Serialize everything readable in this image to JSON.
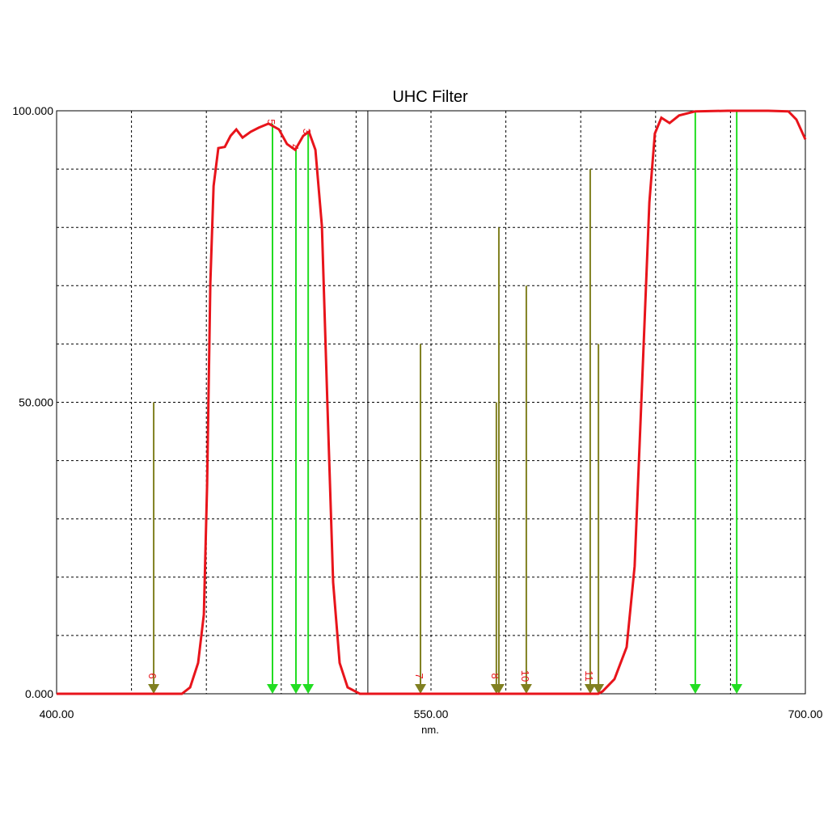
{
  "chart_data": {
    "type": "line",
    "title": "UHC Filter",
    "x_label": "nm.",
    "xlim": [
      400,
      700
    ],
    "ylim": [
      0,
      100
    ],
    "xticks": [
      {
        "value": 400,
        "label": "400.00"
      },
      {
        "value": 550,
        "label": "550.00"
      },
      {
        "value": 700,
        "label": "700.00"
      }
    ],
    "yticks": [
      {
        "value": 0,
        "label": "0.000"
      },
      {
        "value": 50,
        "label": "50.000"
      },
      {
        "value": 100,
        "label": "100.000"
      }
    ],
    "xgrid": [
      430,
      460,
      490,
      520,
      550,
      580,
      610,
      640,
      670
    ],
    "ygrid": [
      10,
      20,
      30,
      40,
      50,
      60,
      70,
      80,
      90
    ],
    "grid": true,
    "cursor_x": 524.7,
    "series": [
      {
        "color": "#e8141b",
        "x": [
          400,
          450.2,
          453.5,
          456.7,
          459,
          460.3,
          461.6,
          462.9,
          464.8,
          467.4,
          469.7,
          472,
          474.5,
          477.8,
          481,
          484.9,
          489.1,
          492.3,
          495.6,
          498.8,
          501.1,
          503.7,
          506.3,
          508.5,
          510.8,
          513.4,
          516.6,
          521.5,
          617,
          618.7,
          623.5,
          628.4,
          631.6,
          634.9,
          637.5,
          639.7,
          642.3,
          645.6,
          649.4,
          655.9,
          668.9,
          685.1,
          693.2,
          696.4,
          700
        ],
        "values": [
          0,
          0,
          1.1,
          5.3,
          13.6,
          35.8,
          70.5,
          87.1,
          93.6,
          93.8,
          95.7,
          96.8,
          95.4,
          96.4,
          97.1,
          97.8,
          96.8,
          94.3,
          93.3,
          95.7,
          96.4,
          93.3,
          80.2,
          49.7,
          19.1,
          5.3,
          1.1,
          0,
          0,
          0.4,
          2.5,
          8,
          21.9,
          56.6,
          84.3,
          96.1,
          98.8,
          97.9,
          99.2,
          99.9,
          100,
          100,
          99.9,
          98.5,
          95.1
        ]
      }
    ],
    "markers": [
      {
        "x": 486.5,
        "y": 97.8,
        "label": "5",
        "color": "#22dd22"
      },
      {
        "x": 495.9,
        "y": 93.5,
        "label": "4",
        "color": "#22dd22"
      },
      {
        "x": 500.8,
        "y": 96.2,
        "label": "3",
        "color": "#22dd22"
      },
      {
        "x": 655.9,
        "y": 99.9,
        "label": null,
        "color": "#22dd22"
      },
      {
        "x": 672.5,
        "y": 99.9,
        "label": null,
        "color": "#22dd22"
      },
      {
        "x": 438.9,
        "y": 50,
        "label": "6",
        "color": "#808020"
      },
      {
        "x": 545.8,
        "y": 60,
        "label": "7",
        "color": "#808020"
      },
      {
        "x": 576.2,
        "y": 50,
        "label": "8",
        "color": "#808020"
      },
      {
        "x": 577.2,
        "y": 80,
        "label": null,
        "color": "#808020"
      },
      {
        "x": 588.2,
        "y": 70,
        "label": "10",
        "color": "#808020"
      },
      {
        "x": 613.8,
        "y": 90,
        "label": "11",
        "color": "#808020"
      },
      {
        "x": 617.1,
        "y": 60,
        "label": null,
        "color": "#808020"
      }
    ]
  }
}
